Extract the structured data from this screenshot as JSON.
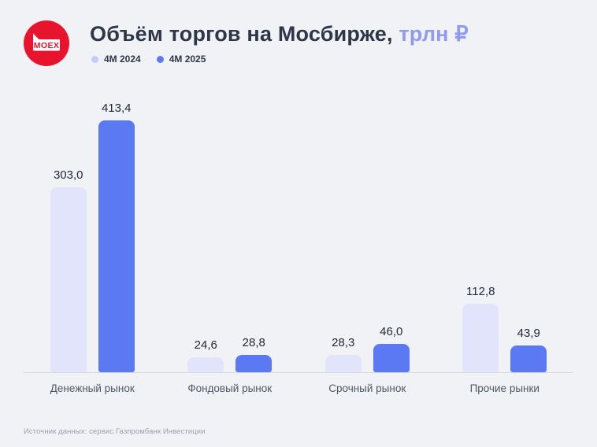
{
  "header": {
    "logo_text": "MOEX",
    "title_main": "Объём торгов на Мосбирже,",
    "title_accent": " трлн ₽"
  },
  "legend": [
    {
      "label": "4M 2024",
      "color": "#c6cbf6"
    },
    {
      "label": "4M 2025",
      "color": "#5b79f3"
    }
  ],
  "chart_data": {
    "type": "bar",
    "title": "Объём торгов на Мосбирже, трлн ₽",
    "unit": "трлн ₽",
    "categories": [
      "Денежный рынок",
      "Фондовый рынок",
      "Срочный рынок",
      "Прочие рынки"
    ],
    "series": [
      {
        "name": "4M 2024",
        "color": "#e1e4fb",
        "values": [
          303.0,
          24.6,
          28.3,
          112.8
        ]
      },
      {
        "name": "4M 2025",
        "color": "#5b79f3",
        "values": [
          413.4,
          28.8,
          46.0,
          43.9
        ]
      }
    ],
    "ylim": [
      0,
      440
    ],
    "grid": false,
    "legend_position": "top-left",
    "value_label_decimal_separator": ","
  },
  "footer": {
    "source": "Источник данных: сервис Газпромбанк Инвестиции"
  },
  "colors": {
    "background": "#f1f2f6",
    "title": "#2e3747",
    "title_accent": "#8f9bef",
    "bar_2024": "#e1e4fb",
    "bar_2025": "#5b79f3",
    "logo_red": "#e8142d",
    "baseline": "#d6d8de"
  }
}
